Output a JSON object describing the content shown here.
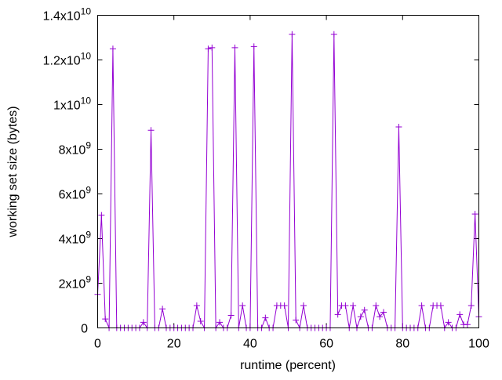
{
  "chart_data": {
    "type": "line",
    "title": "",
    "xlabel": "runtime (percent)",
    "ylabel": "working set size (bytes)",
    "xlim": [
      0,
      100
    ],
    "ylim": [
      0,
      14000000000
    ],
    "grid": false,
    "x_ticks": [
      {
        "value": 0,
        "label": "0"
      },
      {
        "value": 20,
        "label": "20"
      },
      {
        "value": 40,
        "label": "40"
      },
      {
        "value": 60,
        "label": "60"
      },
      {
        "value": 80,
        "label": "80"
      },
      {
        "value": 100,
        "label": "100"
      }
    ],
    "y_ticks": [
      {
        "value": 0,
        "base": "0",
        "exp": ""
      },
      {
        "value": 2000000000,
        "base": "2x10",
        "exp": "9"
      },
      {
        "value": 4000000000,
        "base": "4x10",
        "exp": "9"
      },
      {
        "value": 6000000000,
        "base": "6x10",
        "exp": "9"
      },
      {
        "value": 8000000000,
        "base": "8x10",
        "exp": "9"
      },
      {
        "value": 10000000000,
        "base": "1x10",
        "exp": "10"
      },
      {
        "value": 12000000000,
        "base": "1.2x10",
        "exp": "10"
      },
      {
        "value": 14000000000,
        "base": "1.4x10",
        "exp": "10"
      }
    ],
    "series": [
      {
        "name": "working set",
        "color": "#9400d3",
        "x": [
          0,
          1,
          2,
          3,
          4,
          5,
          6,
          7,
          8,
          9,
          10,
          11,
          12,
          13,
          14,
          15,
          16,
          17,
          18,
          19,
          20,
          21,
          22,
          23,
          24,
          25,
          26,
          27,
          28,
          29,
          30,
          31,
          32,
          33,
          34,
          35,
          36,
          37,
          38,
          39,
          40,
          41,
          42,
          43,
          44,
          45,
          46,
          47,
          48,
          49,
          50,
          51,
          52,
          53,
          54,
          55,
          56,
          57,
          58,
          59,
          60,
          61,
          62,
          63,
          64,
          65,
          66,
          67,
          68,
          69,
          70,
          71,
          72,
          73,
          74,
          75,
          76,
          77,
          78,
          79,
          80,
          81,
          82,
          83,
          84,
          85,
          86,
          87,
          88,
          89,
          90,
          91,
          92,
          93,
          94,
          95,
          96,
          97,
          98,
          99,
          100
        ],
        "values_e9": [
          1.5,
          5.05,
          0.4,
          0,
          12.5,
          0,
          0,
          0,
          0,
          0,
          0,
          0,
          0.25,
          0,
          8.85,
          0,
          0,
          0.85,
          0,
          0,
          0,
          0,
          0,
          0,
          0,
          0,
          1.0,
          0.3,
          0,
          12.5,
          12.55,
          0,
          0.25,
          0,
          0,
          0.56,
          12.55,
          0,
          1.0,
          0,
          0,
          12.6,
          0,
          0,
          0.45,
          0,
          0,
          1.0,
          1.0,
          1.0,
          0,
          13.15,
          0.35,
          0,
          1.0,
          0,
          0,
          0,
          0,
          0,
          0,
          0,
          13.15,
          0.6,
          1.0,
          1.0,
          0,
          1.0,
          0,
          0.5,
          0.8,
          0,
          0,
          1.0,
          0.5,
          0.7,
          0,
          0,
          0,
          9.0,
          0,
          0,
          0,
          0,
          0,
          1.0,
          0,
          0,
          1.0,
          1.0,
          1.0,
          0,
          0.25,
          0,
          0,
          0.6,
          0.15,
          0.15,
          1.0,
          5.1,
          0.5
        ]
      }
    ]
  }
}
